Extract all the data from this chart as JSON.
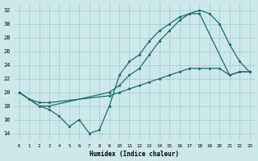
{
  "xlabel": "Humidex (Indice chaleur)",
  "bg_color": "#cce8ea",
  "grid_color": "#99cccc",
  "line_color": "#1a6b6b",
  "xlim": [
    -0.5,
    23.5
  ],
  "ylim": [
    13,
    33
  ],
  "xticks": [
    0,
    1,
    2,
    3,
    4,
    5,
    6,
    7,
    8,
    9,
    10,
    11,
    12,
    13,
    14,
    15,
    16,
    17,
    18,
    19,
    20,
    21,
    22,
    23
  ],
  "yticks": [
    14,
    16,
    18,
    20,
    22,
    24,
    26,
    28,
    30,
    32
  ],
  "line1_x": [
    0,
    1,
    2,
    3,
    4,
    5,
    6,
    7,
    8,
    9,
    10,
    11,
    12,
    13,
    14,
    15,
    16,
    17,
    18,
    19,
    20,
    21,
    22,
    23
  ],
  "line1_y": [
    20.0,
    19.0,
    18.0,
    17.5,
    16.5,
    15.0,
    16.0,
    14.0,
    14.5,
    18.0,
    22.5,
    24.5,
    25.5,
    27.5,
    29.0,
    30.0,
    31.0,
    31.5,
    32.0,
    31.5,
    30.0,
    27.0,
    24.5,
    23.0
  ],
  "line2_x": [
    0,
    2,
    3,
    9,
    10,
    11,
    12,
    13,
    14,
    15,
    16,
    17,
    18,
    21,
    22,
    23
  ],
  "line2_y": [
    20.0,
    18.0,
    18.0,
    20.0,
    21.0,
    22.5,
    23.5,
    25.5,
    27.5,
    29.0,
    30.5,
    31.5,
    31.5,
    22.5,
    23.0,
    23.0
  ],
  "line3_x": [
    0,
    1,
    2,
    3,
    9,
    10,
    11,
    12,
    13,
    14,
    15,
    16,
    17,
    18,
    19,
    20,
    21,
    22,
    23
  ],
  "line3_y": [
    20.0,
    19.0,
    18.5,
    18.5,
    19.5,
    20.0,
    20.5,
    21.0,
    21.5,
    22.0,
    22.5,
    23.0,
    23.5,
    23.5,
    23.5,
    23.5,
    22.5,
    23.0,
    23.0
  ]
}
